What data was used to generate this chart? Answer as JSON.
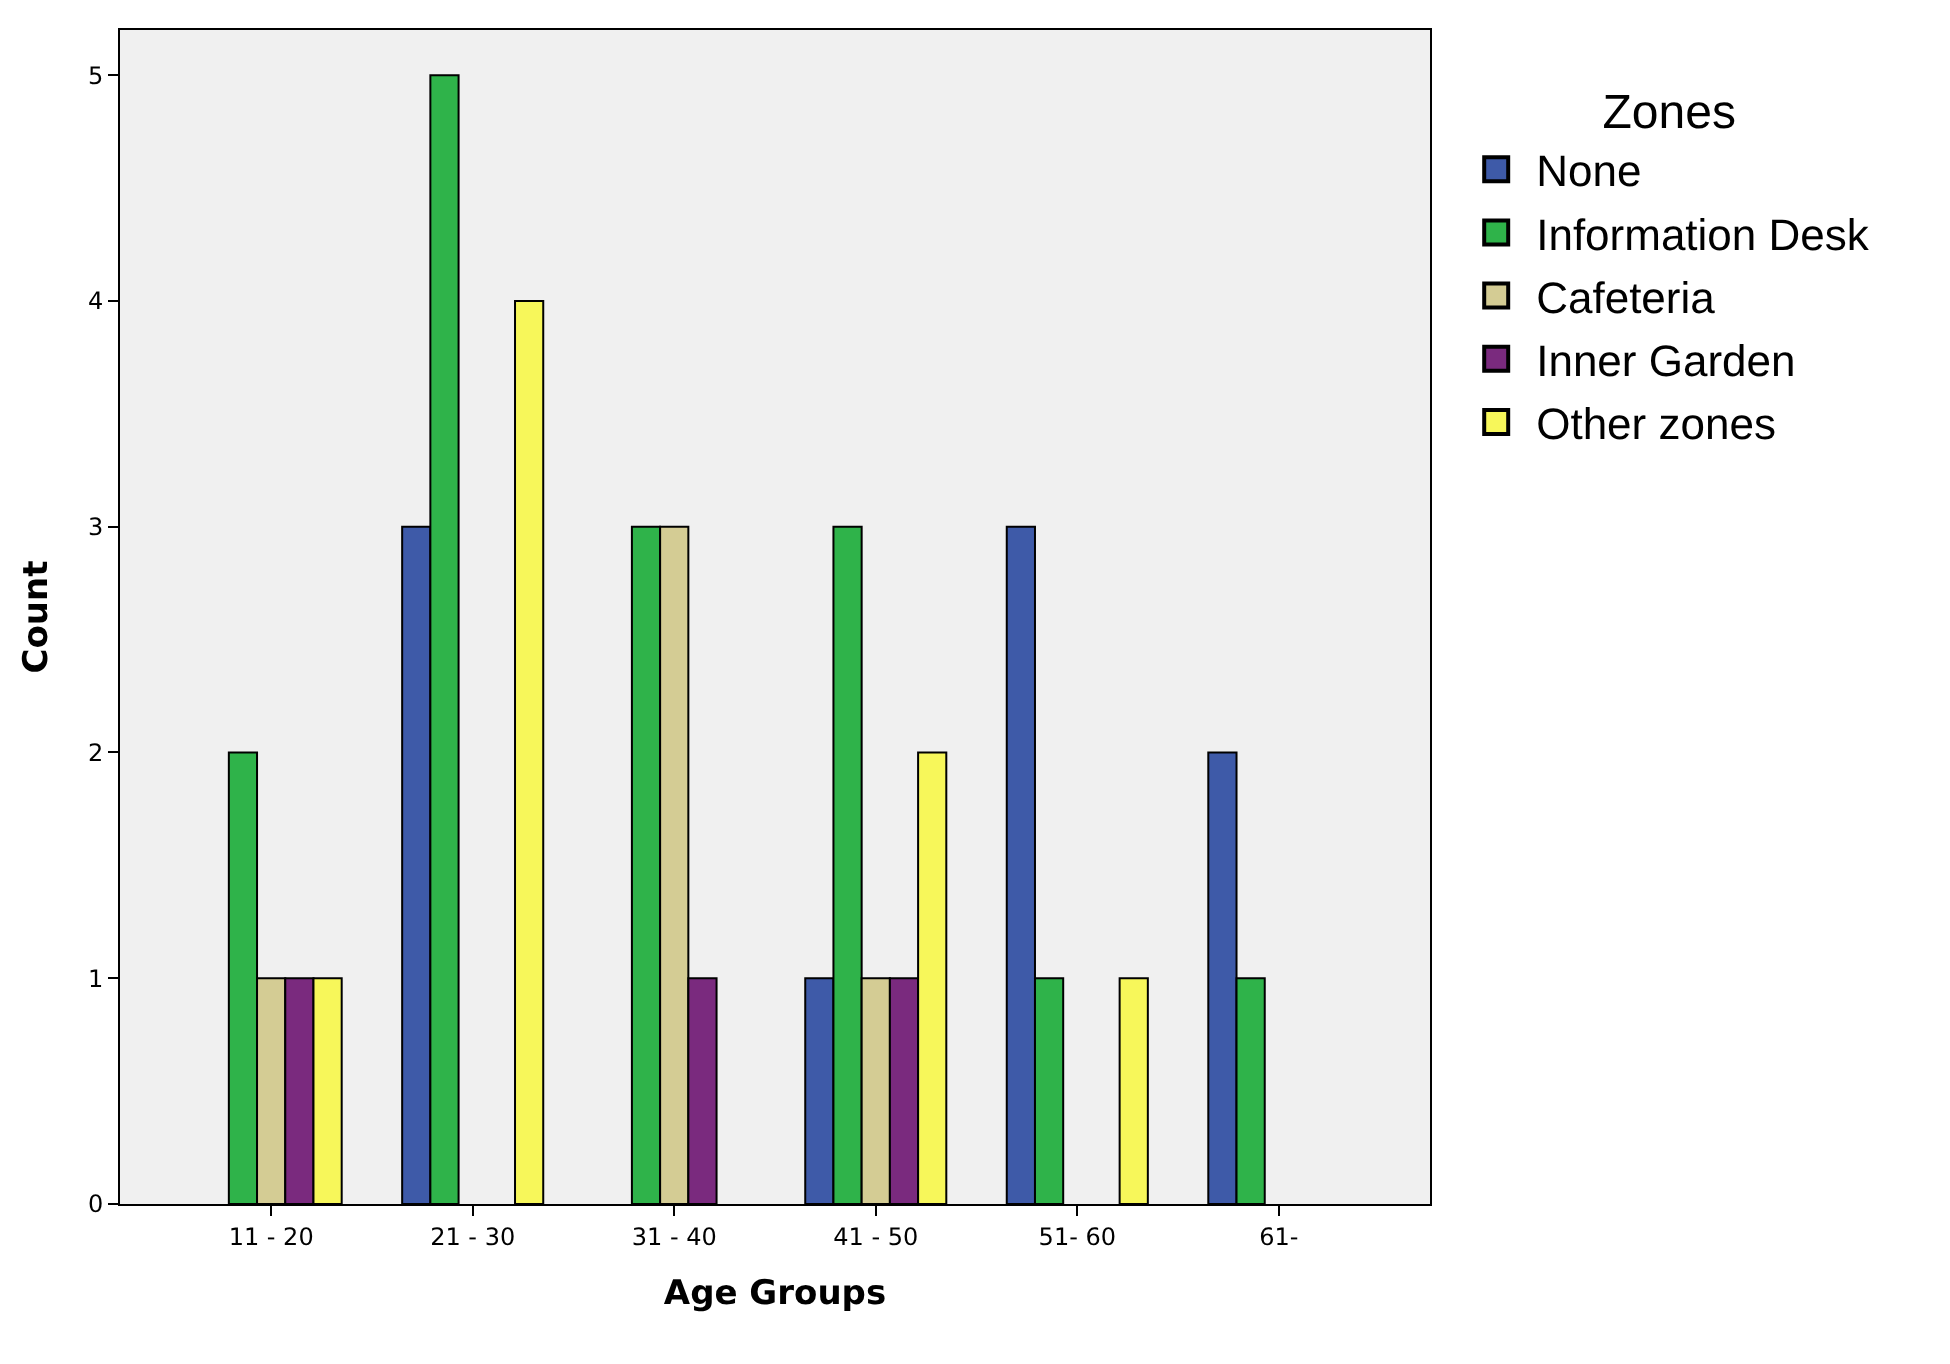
{
  "chart_data": {
    "type": "bar",
    "xlabel": "Age Groups",
    "ylabel": "Count",
    "legend_title": "Zones",
    "legend": "right",
    "grid": false,
    "categories": [
      "11 - 20",
      "21 - 30",
      "31 - 40",
      "41 - 50",
      "51- 60",
      "61-"
    ],
    "ylim": [
      0,
      5.2
    ],
    "yticks": [
      0,
      1,
      2,
      3,
      4,
      5
    ],
    "series": [
      {
        "name": "None",
        "color": "#3e5aa8",
        "values": [
          0,
          3,
          0,
          1,
          3,
          2
        ]
      },
      {
        "name": "Information Desk",
        "color": "#2fb34a",
        "values": [
          2,
          5,
          3,
          3,
          1,
          1
        ]
      },
      {
        "name": "Cafeteria",
        "color": "#d4cc94",
        "values": [
          1,
          0,
          3,
          1,
          0,
          0
        ]
      },
      {
        "name": "Inner Garden",
        "color": "#7a2a7e",
        "values": [
          1,
          0,
          1,
          1,
          0,
          0
        ]
      },
      {
        "name": "Other zones",
        "color": "#f7f75a",
        "values": [
          1,
          4,
          0,
          2,
          1,
          0
        ]
      }
    ]
  }
}
